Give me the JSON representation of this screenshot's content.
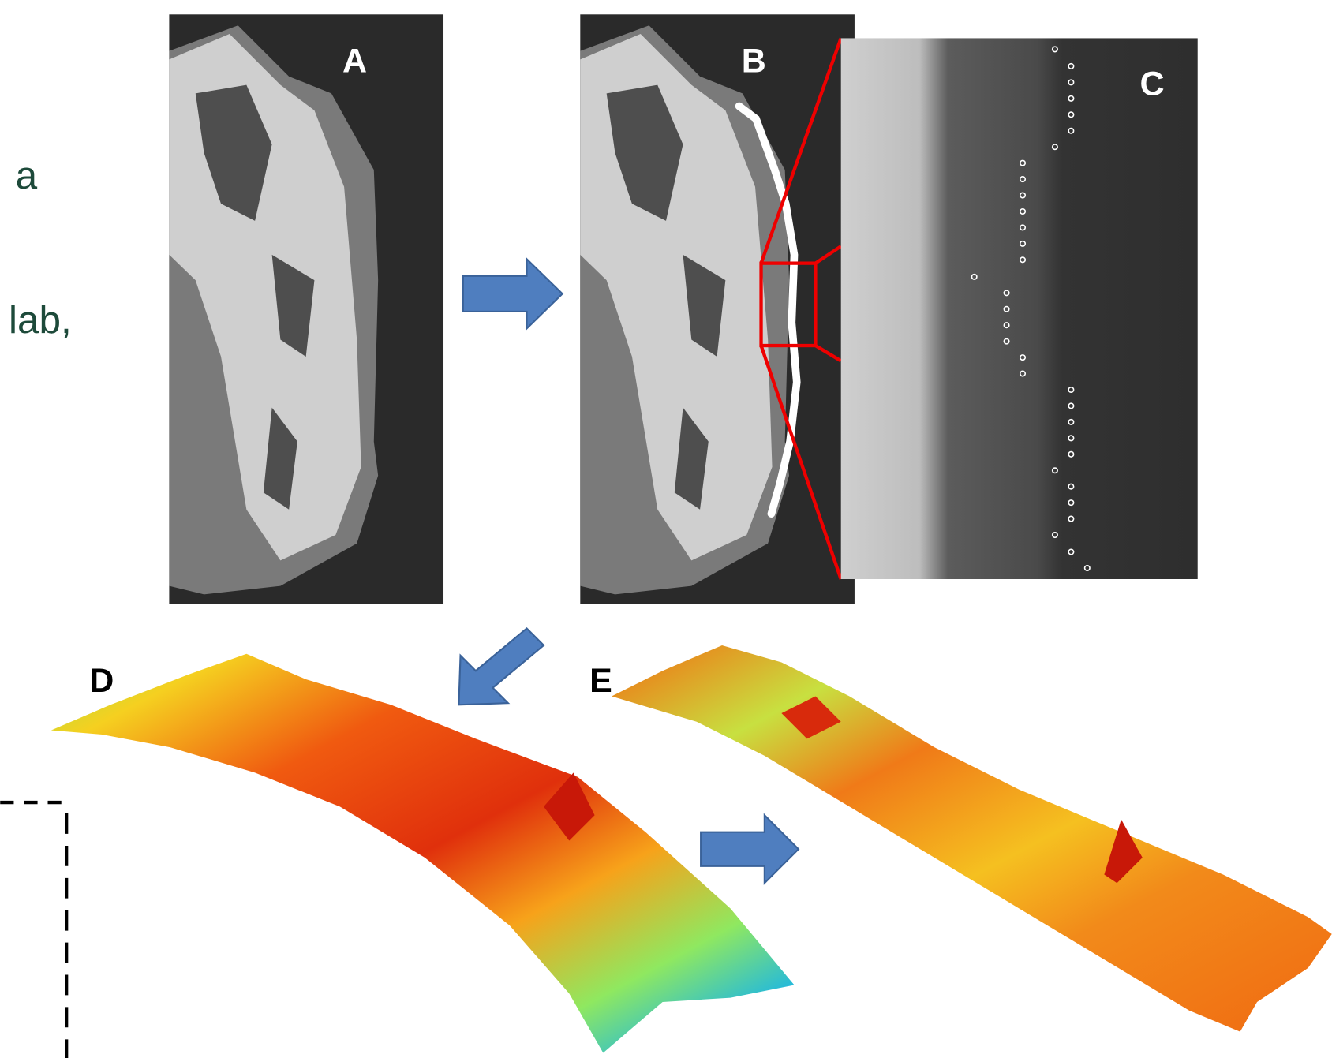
{
  "side_text": {
    "line1": "a",
    "line2": "lab,"
  },
  "panels": {
    "a": "A",
    "b": "B",
    "c": "C",
    "d": "D",
    "e": "E"
  }
}
